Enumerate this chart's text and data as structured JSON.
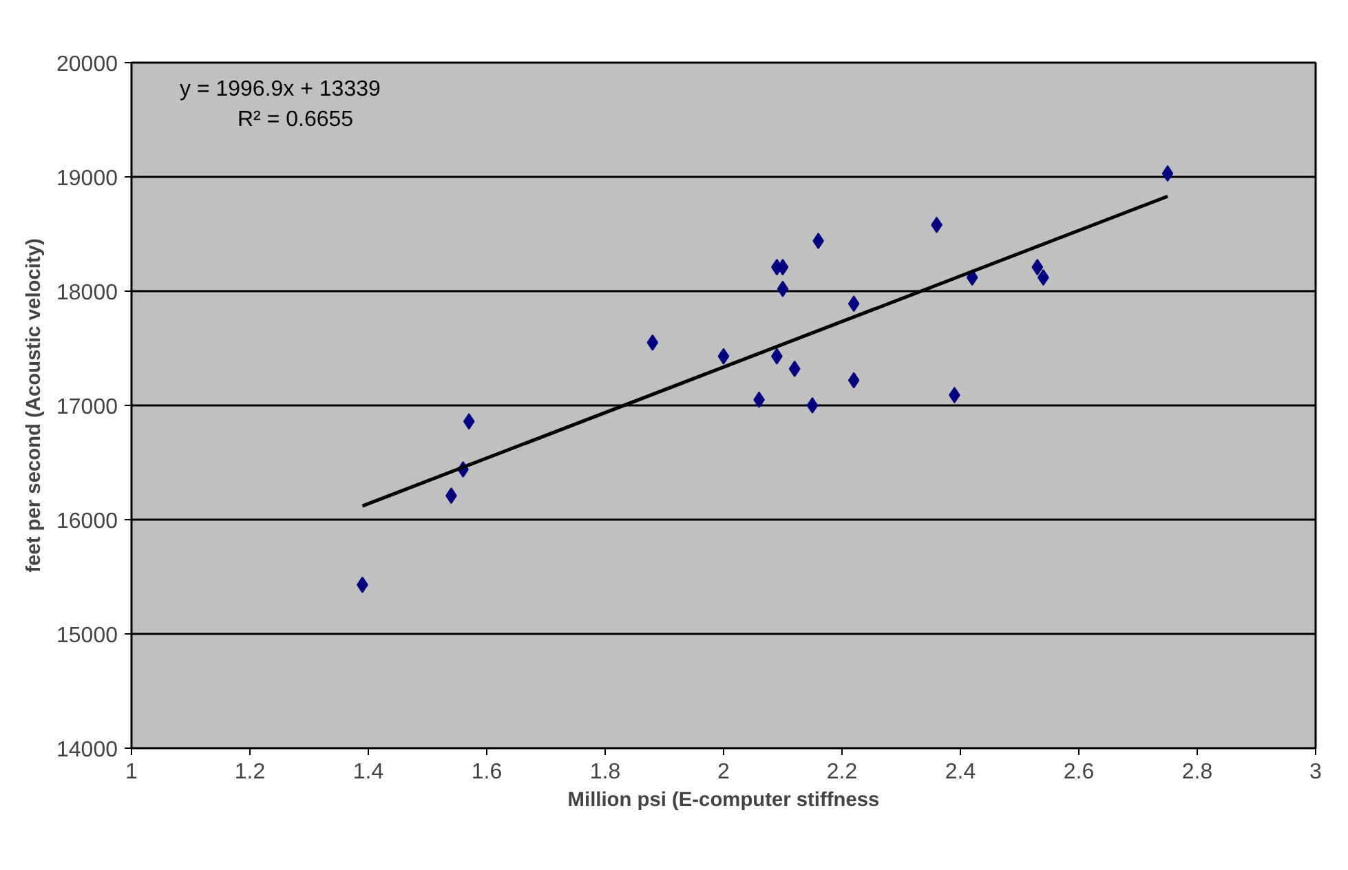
{
  "chart_data": {
    "type": "scatter",
    "xlabel": "Million psi (E-computer stiffness",
    "ylabel": "feet per second (Acoustic velocity)",
    "xlim": [
      1,
      3
    ],
    "xticks": [
      1,
      1.2,
      1.4,
      1.6,
      1.8,
      2,
      2.2,
      2.4,
      2.6,
      2.8,
      3
    ],
    "ylim": [
      14000,
      20000
    ],
    "yticks": [
      14000,
      15000,
      16000,
      17000,
      18000,
      19000,
      20000
    ],
    "grid": "y",
    "marker": "diamond",
    "series": [
      {
        "type": "scatter",
        "color": "#000080",
        "x": [
          1.39,
          1.54,
          1.56,
          1.57,
          1.88,
          2.0,
          2.06,
          2.09,
          2.09,
          2.1,
          2.1,
          2.12,
          2.15,
          2.16,
          2.22,
          2.22,
          2.36,
          2.39,
          2.42,
          2.53,
          2.54,
          2.75
        ],
        "values": [
          15430,
          16210,
          16440,
          16860,
          17550,
          17430,
          17050,
          17430,
          18210,
          18210,
          18020,
          17320,
          17000,
          18440,
          17890,
          17220,
          18580,
          17090,
          18120,
          18210,
          18120,
          19030
        ]
      },
      {
        "type": "line",
        "color": "#000000",
        "marker": "none",
        "x": [
          1.39,
          2.75
        ],
        "values": [
          16120,
          18830
        ]
      }
    ],
    "annotations": [
      "y = 1996.9x + 13339",
      "R² = 0.6655"
    ]
  }
}
